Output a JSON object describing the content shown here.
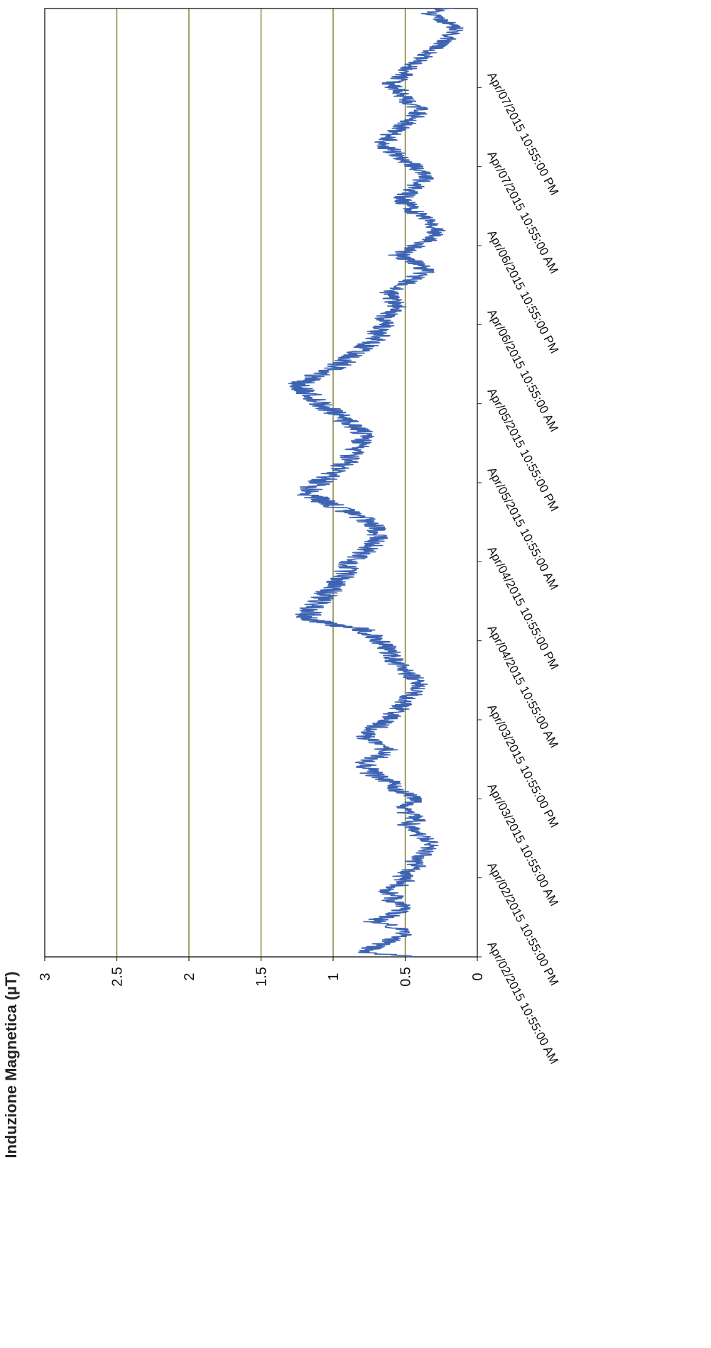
{
  "chart_data": {
    "type": "line",
    "title": "",
    "xlabel": "",
    "ylabel": "Induzione Magnetica (µT)",
    "ylim": [
      0,
      3
    ],
    "yticks": [
      "0",
      "0.5",
      "1",
      "1.5",
      "2",
      "2.5",
      "3"
    ],
    "grid": true,
    "orientation": "rotated-90-clockwise",
    "colors": {
      "series": "#3d63b3",
      "grid": "#7f7a2e",
      "frame": "#222222"
    },
    "x_ticks": [
      "Apr/02/2015 10:55:00 AM",
      "Apr/02/2015 10:55:00 PM",
      "Apr/03/2015 10:55:00 AM",
      "Apr/03/2015 10:55:00 PM",
      "Apr/04/2015 10:55:00 AM",
      "Apr/04/2015 10:55:00 PM",
      "Apr/05/2015 10:55:00 AM",
      "Apr/05/2015 10:55:00 PM",
      "Apr/06/2015 10:55:00 AM",
      "Apr/06/2015 10:55:00 PM",
      "Apr/07/2015 10:55:00 AM",
      "Apr/07/2015 10:55:00 PM"
    ],
    "x_range_ticks": 12,
    "series": [
      {
        "values": [
          0.45,
          0.82,
          0.7,
          0.62,
          0.55,
          0.48,
          0.58,
          0.72,
          0.62,
          0.55,
          0.52,
          0.6,
          0.58,
          0.62,
          0.55,
          0.5,
          0.52,
          0.48,
          0.42,
          0.45,
          0.38,
          0.35,
          0.32,
          0.33,
          0.4,
          0.45,
          0.5,
          0.42,
          0.45,
          0.52,
          0.5,
          0.42,
          0.48,
          0.55,
          0.58,
          0.62,
          0.72,
          0.75,
          0.78,
          0.76,
          0.65,
          0.62,
          0.7,
          0.75,
          0.78,
          0.72,
          0.68,
          0.62,
          0.6,
          0.55,
          0.52,
          0.5,
          0.45,
          0.42,
          0.4,
          0.42,
          0.48,
          0.52,
          0.55,
          0.58,
          0.6,
          0.62,
          0.65,
          0.7,
          0.75,
          0.8,
          1.05,
          1.15,
          1.18,
          1.15,
          1.12,
          1.08,
          1.05,
          1.0,
          0.98,
          0.95,
          0.92,
          0.9,
          0.88,
          0.85,
          0.8,
          0.75,
          0.72,
          0.7,
          0.68,
          0.7,
          0.75,
          0.8,
          0.88,
          0.95,
          1.05,
          1.12,
          1.2,
          1.15,
          1.1,
          1.05,
          1.0,
          0.95,
          0.9,
          0.88,
          0.85,
          0.82,
          0.8,
          0.78,
          0.8,
          0.85,
          0.9,
          0.95,
          1.0,
          1.05,
          1.1,
          1.15,
          1.2,
          1.25,
          1.2,
          1.15,
          1.05,
          0.98,
          0.92,
          0.88,
          0.82,
          0.78,
          0.72,
          0.68,
          0.7,
          0.65,
          0.62,
          0.65,
          0.6,
          0.55,
          0.58,
          0.62,
          0.6,
          0.52,
          0.48,
          0.42,
          0.35,
          0.4,
          0.45,
          0.55,
          0.5,
          0.42,
          0.35,
          0.3,
          0.28,
          0.3,
          0.32,
          0.4,
          0.45,
          0.48,
          0.52,
          0.5,
          0.45,
          0.42,
          0.38,
          0.35,
          0.4,
          0.45,
          0.5,
          0.55,
          0.6,
          0.68,
          0.62,
          0.6,
          0.55,
          0.5,
          0.45,
          0.42,
          0.4,
          0.45,
          0.5,
          0.52,
          0.55,
          0.6,
          0.55,
          0.5,
          0.48,
          0.45,
          0.4,
          0.35,
          0.3,
          0.25,
          0.2,
          0.18,
          0.15,
          0.2,
          0.25,
          0.35,
          0.2
        ]
      }
    ]
  }
}
